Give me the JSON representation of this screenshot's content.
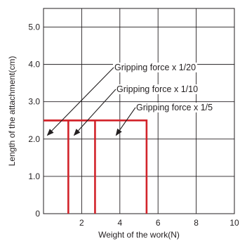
{
  "chart_data": {
    "type": "line",
    "xlabel": "Weight of the work(N)",
    "ylabel": "Length of the attachment(cm)",
    "xlim": [
      0,
      10
    ],
    "ylim": [
      0,
      5.5
    ],
    "x_ticks": [
      2,
      4,
      6,
      8,
      10
    ],
    "x_tick_labels": [
      "2",
      "4",
      "6",
      "8",
      "10"
    ],
    "y_ticks": [
      0,
      1.0,
      2.0,
      3.0,
      4.0,
      5.0
    ],
    "y_tick_labels": [
      "0",
      "1.0",
      "2.0",
      "3.0",
      "4.0",
      "5.0"
    ],
    "grid": true,
    "series_color": "#d2232a",
    "series": [
      {
        "label": "Gripping force x 1/20",
        "points": [
          [
            0,
            2.5
          ],
          [
            1.3,
            2.5
          ],
          [
            1.3,
            0
          ]
        ]
      },
      {
        "label": "Gripping force x 1/10",
        "points": [
          [
            0,
            2.5
          ],
          [
            2.7,
            2.5
          ],
          [
            2.7,
            0
          ]
        ]
      },
      {
        "label": "Gripping force x 1/5",
        "points": [
          [
            0,
            2.5
          ],
          [
            5.4,
            2.5
          ],
          [
            5.4,
            0
          ]
        ]
      }
    ],
    "annotations": [
      {
        "text": "Gripping force x 1/20",
        "arrow_to": [
          0.2,
          2.1
        ]
      },
      {
        "text": "Gripping force x 1/10",
        "arrow_to": [
          1.6,
          2.1
        ]
      },
      {
        "text": "Gripping force x 1/5",
        "arrow_to": [
          3.8,
          2.1
        ]
      }
    ]
  }
}
